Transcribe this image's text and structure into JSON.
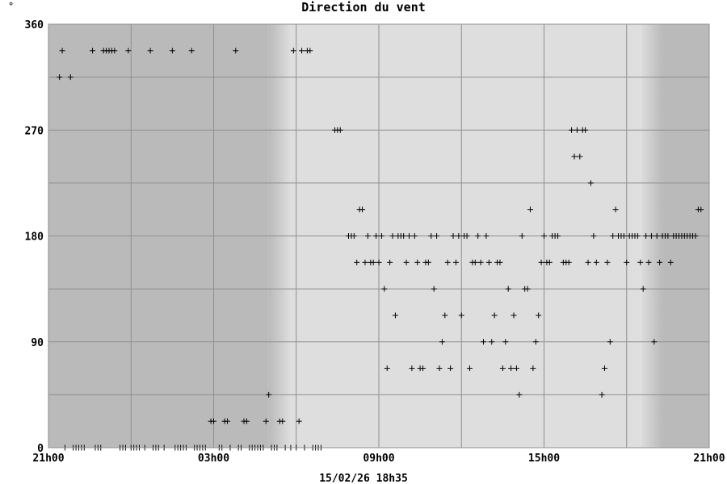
{
  "chart_data": {
    "type": "scatter",
    "title": "Direction du vent",
    "y_unit": "°",
    "timestamp": "15/02/26 18h35",
    "ylim": [
      0,
      360
    ],
    "yticks": [
      0,
      90,
      180,
      270,
      360
    ],
    "xticks": [
      "21h00",
      "03h00",
      "09h00",
      "15h00",
      "21h00"
    ],
    "x_range_hours": [
      0,
      24
    ],
    "x_tick_hours": [
      0,
      6,
      12,
      18,
      24
    ],
    "grid": true,
    "background_bands": [
      {
        "from_h": 0,
        "to_h": 8.0,
        "color": "#bababa"
      },
      {
        "from_h": 8.0,
        "to_h": 8.8,
        "color": "gradient-dark-to-light"
      },
      {
        "from_h": 8.8,
        "to_h": 21.5,
        "color": "#dedede"
      },
      {
        "from_h": 21.5,
        "to_h": 22.3,
        "color": "gradient-light-to-dark"
      },
      {
        "from_h": 22.3,
        "to_h": 24,
        "color": "#bababa"
      }
    ],
    "series": [
      {
        "points": [
          [
            0.4,
            315
          ],
          [
            0.5,
            337.5
          ],
          [
            0.6,
            0
          ],
          [
            0.8,
            315
          ],
          [
            0.9,
            0
          ],
          [
            1.0,
            0
          ],
          [
            1.1,
            0
          ],
          [
            1.2,
            0
          ],
          [
            1.3,
            0
          ],
          [
            1.6,
            337.5
          ],
          [
            1.7,
            0
          ],
          [
            1.8,
            0
          ],
          [
            1.9,
            0
          ],
          [
            2.0,
            337.5
          ],
          [
            2.1,
            337.5
          ],
          [
            2.2,
            337.5
          ],
          [
            2.3,
            337.5
          ],
          [
            2.4,
            337.5
          ],
          [
            2.6,
            0
          ],
          [
            2.7,
            0
          ],
          [
            2.8,
            0
          ],
          [
            2.9,
            337.5
          ],
          [
            3.0,
            0
          ],
          [
            3.1,
            0
          ],
          [
            3.2,
            0
          ],
          [
            3.3,
            0
          ],
          [
            3.5,
            0
          ],
          [
            3.7,
            337.5
          ],
          [
            3.8,
            0
          ],
          [
            3.9,
            0
          ],
          [
            4.0,
            0
          ],
          [
            4.2,
            0
          ],
          [
            4.5,
            337.5
          ],
          [
            4.6,
            0
          ],
          [
            4.7,
            0
          ],
          [
            4.8,
            0
          ],
          [
            4.9,
            0
          ],
          [
            5.0,
            0
          ],
          [
            5.2,
            337.5
          ],
          [
            5.3,
            0
          ],
          [
            5.4,
            0
          ],
          [
            5.5,
            0
          ],
          [
            5.6,
            0
          ],
          [
            5.7,
            0
          ],
          [
            5.9,
            22.5
          ],
          [
            6.0,
            22.5
          ],
          [
            6.2,
            0
          ],
          [
            6.3,
            0
          ],
          [
            6.4,
            22.5
          ],
          [
            6.5,
            22.5
          ],
          [
            6.6,
            0
          ],
          [
            6.8,
            337.5
          ],
          [
            6.9,
            0
          ],
          [
            7.0,
            0
          ],
          [
            7.1,
            22.5
          ],
          [
            7.2,
            22.5
          ],
          [
            7.3,
            0
          ],
          [
            7.4,
            0
          ],
          [
            7.5,
            0
          ],
          [
            7.6,
            0
          ],
          [
            7.7,
            0
          ],
          [
            7.8,
            0
          ],
          [
            7.9,
            22.5
          ],
          [
            8.0,
            45
          ],
          [
            8.1,
            0
          ],
          [
            8.2,
            0
          ],
          [
            8.3,
            0
          ],
          [
            8.4,
            22.5
          ],
          [
            8.5,
            22.5
          ],
          [
            8.6,
            0
          ],
          [
            8.8,
            0
          ],
          [
            8.9,
            337.5
          ],
          [
            9.0,
            0
          ],
          [
            9.1,
            22.5
          ],
          [
            9.2,
            337.5
          ],
          [
            9.3,
            0
          ],
          [
            9.4,
            337.5
          ],
          [
            9.5,
            337.5
          ],
          [
            9.6,
            0
          ],
          [
            9.7,
            0
          ],
          [
            9.8,
            0
          ],
          [
            9.9,
            0
          ],
          [
            10.4,
            270
          ],
          [
            10.5,
            270
          ],
          [
            10.6,
            270
          ],
          [
            10.9,
            180
          ],
          [
            11.0,
            180
          ],
          [
            11.1,
            180
          ],
          [
            11.2,
            157.5
          ],
          [
            11.3,
            202.5
          ],
          [
            11.4,
            202.5
          ],
          [
            11.5,
            157.5
          ],
          [
            11.6,
            180
          ],
          [
            11.7,
            157.5
          ],
          [
            11.8,
            157.5
          ],
          [
            11.9,
            180
          ],
          [
            12.0,
            157.5
          ],
          [
            12.1,
            180
          ],
          [
            12.2,
            135
          ],
          [
            12.3,
            67.5
          ],
          [
            12.4,
            157.5
          ],
          [
            12.5,
            180
          ],
          [
            12.6,
            112.5
          ],
          [
            12.7,
            180
          ],
          [
            12.8,
            180
          ],
          [
            12.9,
            180
          ],
          [
            13.0,
            157.5
          ],
          [
            13.1,
            180
          ],
          [
            13.2,
            67.5
          ],
          [
            13.3,
            180
          ],
          [
            13.4,
            157.5
          ],
          [
            13.5,
            67.5
          ],
          [
            13.6,
            67.5
          ],
          [
            13.7,
            157.5
          ],
          [
            13.8,
            157.5
          ],
          [
            13.9,
            180
          ],
          [
            14.0,
            135
          ],
          [
            14.1,
            180
          ],
          [
            14.2,
            67.5
          ],
          [
            14.3,
            90
          ],
          [
            14.4,
            112.5
          ],
          [
            14.5,
            157.5
          ],
          [
            14.6,
            67.5
          ],
          [
            14.7,
            180
          ],
          [
            14.8,
            157.5
          ],
          [
            14.9,
            180
          ],
          [
            15.0,
            112.5
          ],
          [
            15.1,
            180
          ],
          [
            15.2,
            180
          ],
          [
            15.3,
            67.5
          ],
          [
            15.4,
            157.5
          ],
          [
            15.5,
            157.5
          ],
          [
            15.6,
            180
          ],
          [
            15.7,
            157.5
          ],
          [
            15.8,
            90
          ],
          [
            15.9,
            180
          ],
          [
            16.0,
            157.5
          ],
          [
            16.1,
            90
          ],
          [
            16.2,
            112.5
          ],
          [
            16.3,
            157.5
          ],
          [
            16.4,
            157.5
          ],
          [
            16.5,
            67.5
          ],
          [
            16.6,
            90
          ],
          [
            16.7,
            135
          ],
          [
            16.8,
            67.5
          ],
          [
            16.9,
            112.5
          ],
          [
            17.0,
            67.5
          ],
          [
            17.1,
            45
          ],
          [
            17.2,
            180
          ],
          [
            17.3,
            135
          ],
          [
            17.4,
            135
          ],
          [
            17.5,
            202.5
          ],
          [
            17.6,
            67.5
          ],
          [
            17.7,
            90
          ],
          [
            17.8,
            112.5
          ],
          [
            17.9,
            157.5
          ],
          [
            18.0,
            180
          ],
          [
            18.1,
            157.5
          ],
          [
            18.2,
            157.5
          ],
          [
            18.3,
            180
          ],
          [
            18.4,
            180
          ],
          [
            18.5,
            180
          ],
          [
            18.7,
            157.5
          ],
          [
            18.8,
            157.5
          ],
          [
            18.9,
            157.5
          ],
          [
            19.0,
            270
          ],
          [
            19.1,
            247.5
          ],
          [
            19.2,
            270
          ],
          [
            19.3,
            247.5
          ],
          [
            19.4,
            270
          ],
          [
            19.5,
            270
          ],
          [
            19.6,
            157.5
          ],
          [
            19.7,
            225
          ],
          [
            19.8,
            180
          ],
          [
            19.9,
            157.5
          ],
          [
            20.1,
            45
          ],
          [
            20.2,
            67.5
          ],
          [
            20.3,
            157.5
          ],
          [
            20.4,
            90
          ],
          [
            20.5,
            180
          ],
          [
            20.6,
            202.5
          ],
          [
            20.7,
            180
          ],
          [
            20.8,
            180
          ],
          [
            20.9,
            180
          ],
          [
            21.0,
            157.5
          ],
          [
            21.1,
            180
          ],
          [
            21.2,
            180
          ],
          [
            21.3,
            180
          ],
          [
            21.4,
            180
          ],
          [
            21.5,
            157.5
          ],
          [
            21.6,
            135
          ],
          [
            21.7,
            180
          ],
          [
            21.8,
            157.5
          ],
          [
            21.9,
            180
          ],
          [
            22.0,
            90
          ],
          [
            22.1,
            180
          ],
          [
            22.2,
            157.5
          ],
          [
            22.3,
            180
          ],
          [
            22.4,
            180
          ],
          [
            22.5,
            180
          ],
          [
            22.6,
            157.5
          ],
          [
            22.7,
            180
          ],
          [
            22.8,
            180
          ],
          [
            22.9,
            180
          ],
          [
            23.0,
            180
          ],
          [
            23.1,
            180
          ],
          [
            23.2,
            180
          ],
          [
            23.3,
            180
          ],
          [
            23.4,
            180
          ],
          [
            23.5,
            180
          ],
          [
            23.6,
            202.5
          ],
          [
            23.7,
            202.5
          ]
        ]
      }
    ]
  }
}
